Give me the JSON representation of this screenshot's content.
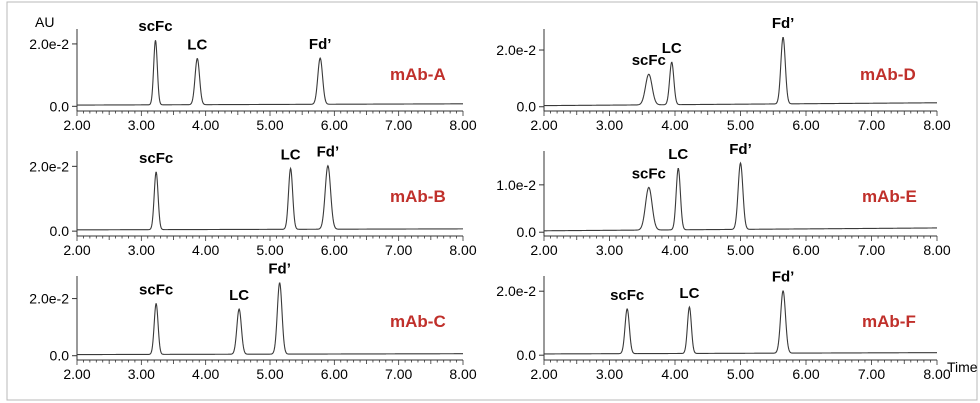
{
  "figure": {
    "y_unit_label": "AU",
    "x_unit_label": "Time",
    "panel_label_color": "#c0302b",
    "trace_color": "#3a3a3a",
    "border_color": "#b8b8b8"
  },
  "chart_data": [
    {
      "type": "line",
      "title": "mAb-A",
      "xlabel": "",
      "ylabel": "AU",
      "xlim": [
        2.0,
        8.0
      ],
      "x_ticks": [
        "2.00",
        "3.00",
        "4.00",
        "5.00",
        "6.00",
        "7.00",
        "8.00"
      ],
      "y_ticks": [
        {
          "value": 0.0,
          "label": "0.0"
        },
        {
          "value": 0.02,
          "label": "2.0e-2"
        }
      ],
      "ylim": [
        -0.0015,
        0.0235
      ],
      "baseline": {
        "start": 0.0004,
        "end": 0.0008
      },
      "peaks": [
        {
          "label": "scFc",
          "rt": 3.22,
          "height": 0.0207,
          "width": 0.028
        },
        {
          "label": "LC",
          "rt": 3.87,
          "height": 0.0148,
          "width": 0.035
        },
        {
          "label": "Fd’",
          "rt": 5.78,
          "height": 0.0148,
          "width": 0.037
        }
      ]
    },
    {
      "type": "line",
      "title": "mAb-B",
      "xlabel": "",
      "ylabel": "",
      "xlim": [
        2.0,
        8.0
      ],
      "x_ticks": [
        "2.00",
        "3.00",
        "4.00",
        "5.00",
        "6.00",
        "7.00",
        "8.00"
      ],
      "y_ticks": [
        {
          "value": 0.0,
          "label": "0.0"
        },
        {
          "value": 0.02,
          "label": "2.0e-2"
        }
      ],
      "ylim": [
        -0.0015,
        0.0235
      ],
      "baseline": {
        "start": 0.0004,
        "end": 0.0007
      },
      "peaks": [
        {
          "label": "scFc",
          "rt": 3.23,
          "height": 0.0178,
          "width": 0.03
        },
        {
          "label": "LC",
          "rt": 5.32,
          "height": 0.0188,
          "width": 0.032
        },
        {
          "label": "Fd’",
          "rt": 5.9,
          "height": 0.0196,
          "width": 0.042
        }
      ]
    },
    {
      "type": "line",
      "title": "mAb-C",
      "xlabel": "",
      "ylabel": "",
      "xlim": [
        2.0,
        8.0
      ],
      "x_ticks": [
        "2.00",
        "3.00",
        "4.00",
        "5.00",
        "6.00",
        "7.00",
        "8.00"
      ],
      "y_ticks": [
        {
          "value": 0.0,
          "label": "0.0"
        },
        {
          "value": 0.02,
          "label": "2.0e-2"
        }
      ],
      "ylim": [
        -0.0015,
        0.0265
      ],
      "baseline": {
        "start": 0.0004,
        "end": 0.0007
      },
      "peaks": [
        {
          "label": "scFc",
          "rt": 3.23,
          "height": 0.0178,
          "width": 0.03
        },
        {
          "label": "LC",
          "rt": 4.52,
          "height": 0.0158,
          "width": 0.035
        },
        {
          "label": "Fd’",
          "rt": 5.15,
          "height": 0.025,
          "width": 0.036
        }
      ]
    },
    {
      "type": "line",
      "title": "mAb-D",
      "xlabel": "",
      "ylabel": "",
      "xlim": [
        2.0,
        8.0
      ],
      "x_ticks": [
        "2.00",
        "3.00",
        "4.00",
        "5.00",
        "6.00",
        "7.00",
        "8.00"
      ],
      "y_ticks": [
        {
          "value": 0.0,
          "label": "0.0"
        },
        {
          "value": 0.02,
          "label": "2.0e-2"
        }
      ],
      "ylim": [
        -0.0015,
        0.026
      ],
      "baseline": {
        "start": 0.0004,
        "end": 0.0014
      },
      "peaks": [
        {
          "label": "scFc",
          "rt": 3.6,
          "height": 0.0108,
          "width": 0.05
        },
        {
          "label": "LC",
          "rt": 3.95,
          "height": 0.015,
          "width": 0.032
        },
        {
          "label": "Fd’",
          "rt": 5.65,
          "height": 0.0235,
          "width": 0.034
        }
      ]
    },
    {
      "type": "line",
      "title": "mAb-E",
      "xlabel": "",
      "ylabel": "",
      "xlim": [
        2.0,
        8.0
      ],
      "x_ticks": [
        "2.00",
        "3.00",
        "4.00",
        "5.00",
        "6.00",
        "7.00",
        "8.00"
      ],
      "y_ticks": [
        {
          "value": 0.0,
          "label": "0.0"
        },
        {
          "value": 0.01,
          "label": "1.0e-2"
        }
      ],
      "ylim": [
        -0.0008,
        0.0163
      ],
      "baseline": {
        "start": 0.0003,
        "end": 0.0009
      },
      "peaks": [
        {
          "label": "scFc",
          "rt": 3.6,
          "height": 0.009,
          "width": 0.05
        },
        {
          "label": "LC",
          "rt": 4.05,
          "height": 0.013,
          "width": 0.032
        },
        {
          "label": "Fd’",
          "rt": 5.0,
          "height": 0.014,
          "width": 0.036
        }
      ]
    },
    {
      "type": "line",
      "title": "mAb-F",
      "xlabel": "Time",
      "ylabel": "",
      "xlim": [
        2.0,
        8.0
      ],
      "x_ticks": [
        "2.00",
        "3.00",
        "4.00",
        "5.00",
        "6.00",
        "7.00",
        "8.00"
      ],
      "y_ticks": [
        {
          "value": 0.0,
          "label": "0.0"
        },
        {
          "value": 0.02,
          "label": "2.0e-2"
        }
      ],
      "ylim": [
        -0.0015,
        0.0235
      ],
      "baseline": {
        "start": 0.0004,
        "end": 0.0008
      },
      "peaks": [
        {
          "label": "scFc",
          "rt": 3.27,
          "height": 0.014,
          "width": 0.033
        },
        {
          "label": "LC",
          "rt": 4.22,
          "height": 0.0145,
          "width": 0.03
        },
        {
          "label": "Fd’",
          "rt": 5.65,
          "height": 0.0195,
          "width": 0.037
        }
      ]
    }
  ]
}
